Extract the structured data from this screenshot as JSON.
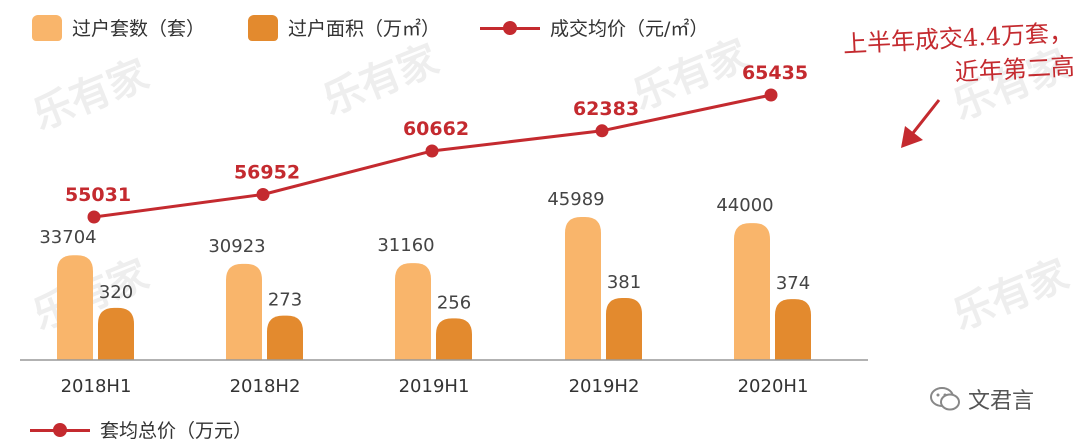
{
  "legend": {
    "units": "过户套数（套）",
    "area": "过户面积（万㎡）",
    "price": "成交均价（元/㎡）",
    "total": "套均总价（万元）"
  },
  "annotation": {
    "line1": "上半年成交4.4万套，",
    "line2": "近年第二高"
  },
  "watermark": "乐有家",
  "source": "文君言",
  "colors": {
    "units_bar": "#f9b56b",
    "area_bar": "#e38a2e",
    "price_line": "#c42a2f",
    "label_red": "#c42a2f",
    "label_gray": "#444444"
  },
  "chart_data": {
    "type": "bar",
    "categories": [
      "2018H1",
      "2018H2",
      "2019H1",
      "2019H2",
      "2020H1"
    ],
    "series": [
      {
        "name": "过户套数（套）",
        "type": "bar",
        "values": [
          33704,
          30923,
          31160,
          45989,
          44000
        ]
      },
      {
        "name": "过户面积（万㎡）",
        "type": "bar",
        "values": [
          320,
          273,
          256,
          381,
          374
        ]
      },
      {
        "name": "成交均价（元/㎡）",
        "type": "line",
        "values": [
          55031,
          56952,
          60662,
          62383,
          65435
        ]
      }
    ],
    "legend_position": "top",
    "grid": false
  }
}
